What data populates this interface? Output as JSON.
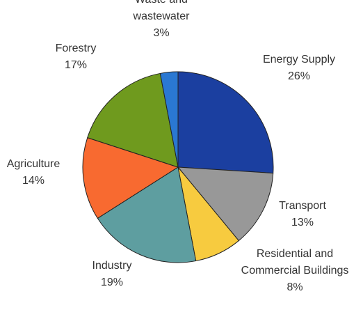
{
  "chart_data": {
    "type": "pie",
    "start": "top",
    "direction": "clockwise",
    "slices": [
      {
        "label": [
          "Energy Supply"
        ],
        "percent_label": "26%",
        "value": 26,
        "color": "#1b3fa0"
      },
      {
        "label": [
          "Transport"
        ],
        "percent_label": "13%",
        "value": 13,
        "color": "#989898"
      },
      {
        "label": [
          "Residential and",
          "Commercial Buildings"
        ],
        "percent_label": "8%",
        "value": 8,
        "color": "#f7cb3f"
      },
      {
        "label": [
          "Industry"
        ],
        "percent_label": "19%",
        "value": 19,
        "color": "#5e9ea0"
      },
      {
        "label": [
          "Agriculture"
        ],
        "percent_label": "14%",
        "value": 14,
        "color": "#f86a30"
      },
      {
        "label": [
          "Forestry"
        ],
        "percent_label": "17%",
        "value": 17,
        "color": "#6f9a1e"
      },
      {
        "label": [
          "Waste and",
          "wastewater"
        ],
        "percent_label": "3%",
        "value": 3,
        "color": "#2a78d2"
      }
    ],
    "edge_color": "#222222"
  }
}
